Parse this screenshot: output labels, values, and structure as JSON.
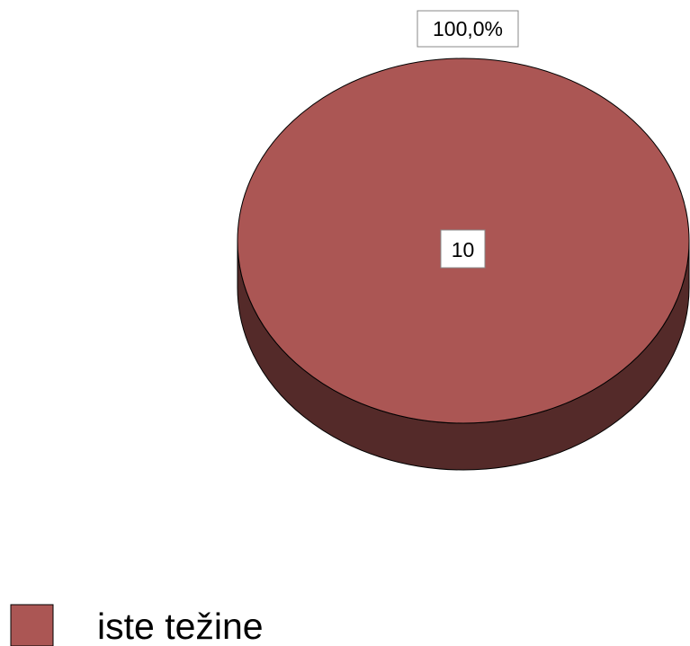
{
  "chart_data": {
    "type": "pie",
    "style": "3d",
    "slices": [
      {
        "name": "iste težine",
        "value": 10,
        "percent_label": "100,0%",
        "count_label": "10",
        "color": "#AB5654",
        "side_color": "#542A29"
      }
    ],
    "legend": {
      "placement": "bottom-left",
      "entries": [
        "iste težine"
      ]
    }
  },
  "colors": {
    "background": "#FFFFFF",
    "outline": "#000000",
    "label_box_fill": "#FFFFFF",
    "label_box_border": "#888888"
  }
}
